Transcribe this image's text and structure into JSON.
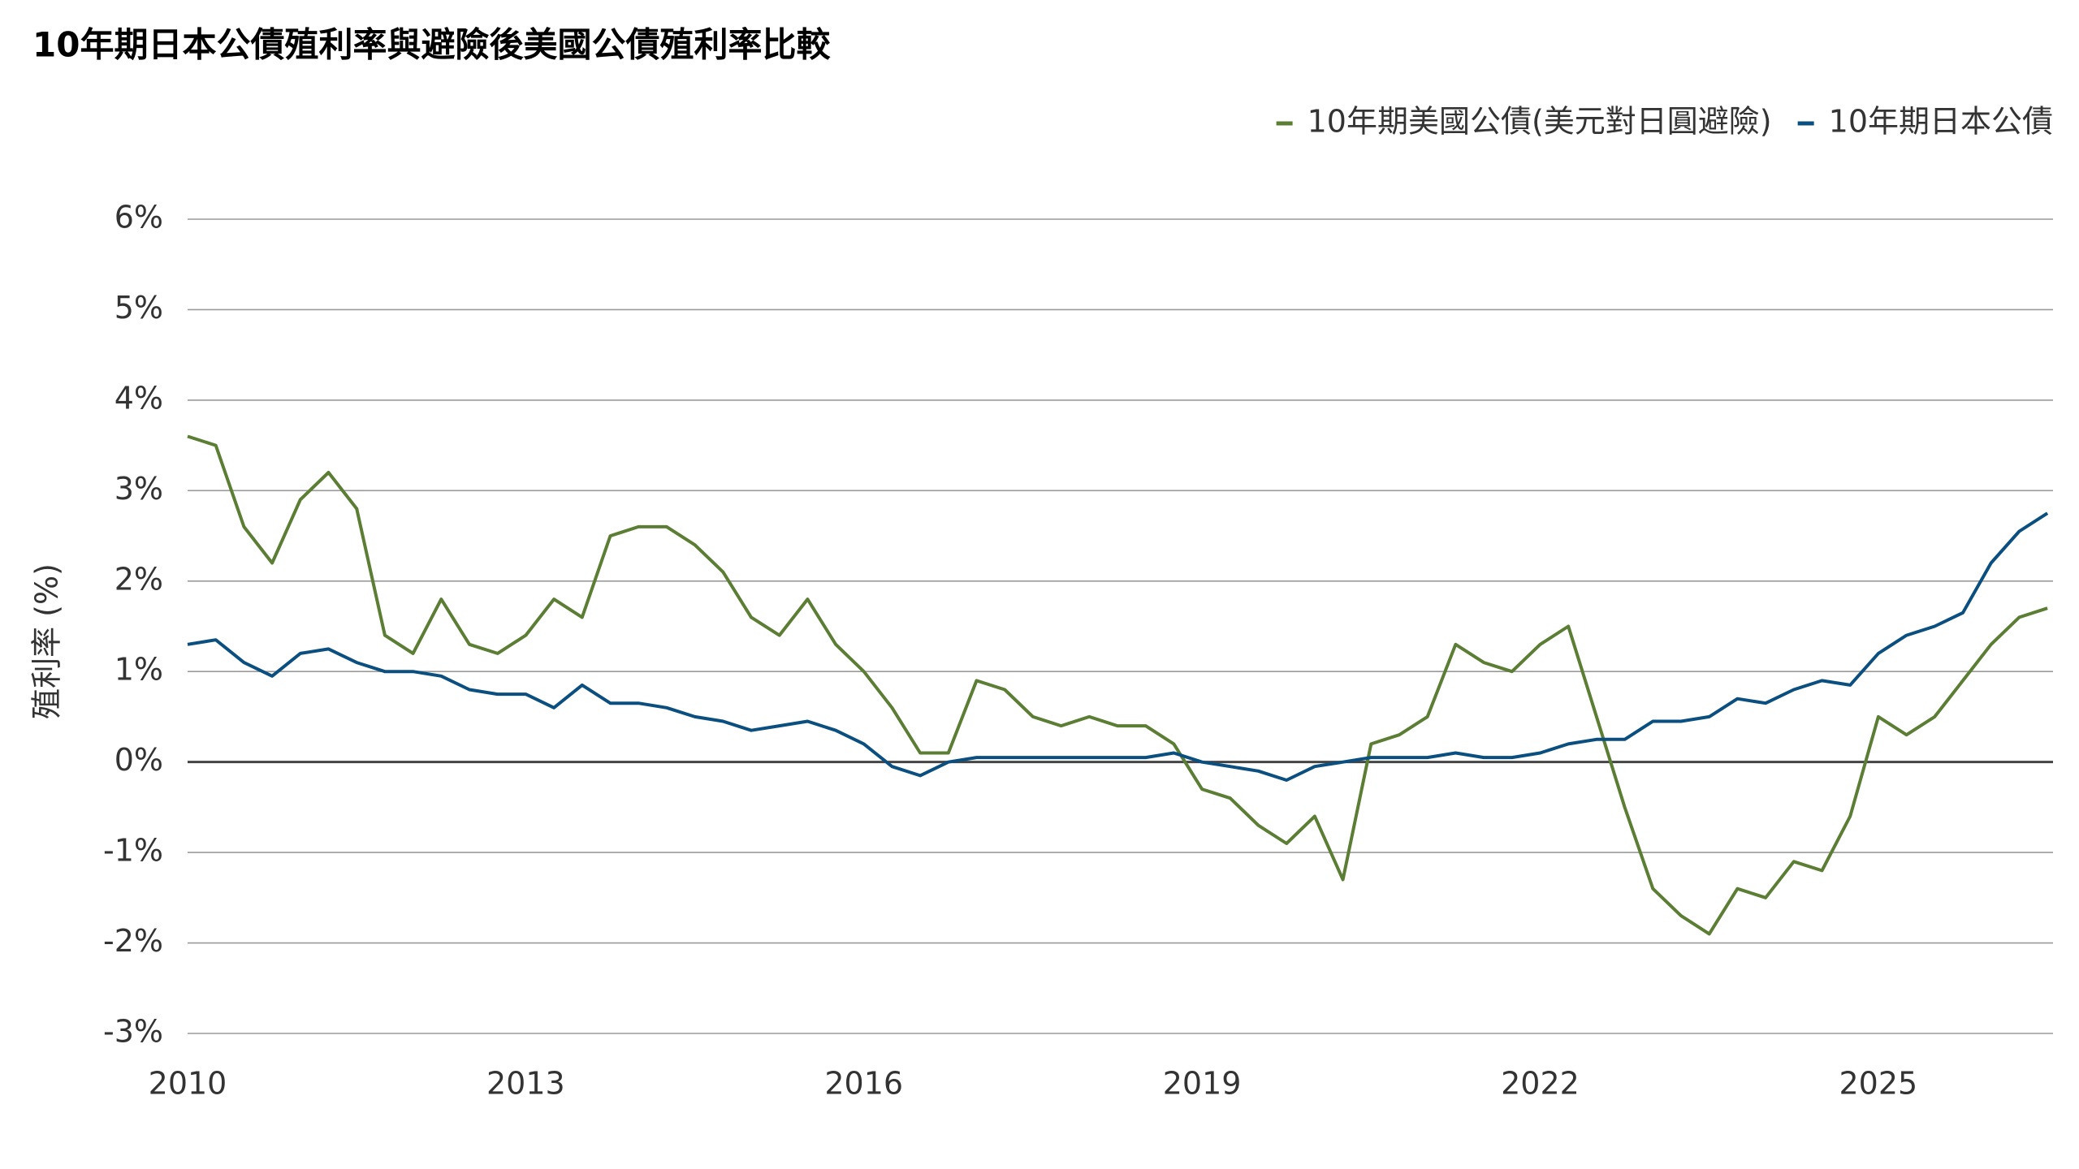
{
  "chart_data": {
    "type": "line",
    "title": "10年期日本公債殖利率與避險後美國公債殖利率比較",
    "y_label": "殖利率 (%)",
    "x": [
      2010,
      2010.25,
      2010.5,
      2010.75,
      2011,
      2011.25,
      2011.5,
      2011.75,
      2012,
      2012.25,
      2012.5,
      2012.75,
      2013,
      2013.25,
      2013.5,
      2013.75,
      2014,
      2014.25,
      2014.5,
      2014.75,
      2015,
      2015.25,
      2015.5,
      2015.75,
      2016,
      2016.25,
      2016.5,
      2016.75,
      2017,
      2017.25,
      2017.5,
      2017.75,
      2018,
      2018.25,
      2018.5,
      2018.75,
      2019,
      2019.25,
      2019.5,
      2019.75,
      2020,
      2020.25,
      2020.5,
      2020.75,
      2021,
      2021.25,
      2021.5,
      2021.75,
      2022,
      2022.25,
      2022.5,
      2022.75,
      2023,
      2023.25,
      2023.5,
      2023.75,
      2024,
      2024.25,
      2024.5,
      2024.75,
      2025,
      2025.25,
      2025.5,
      2025.75,
      2026,
      2026.25,
      2026.5
    ],
    "series": [
      {
        "name": "10年期美國公債(美元對日圓避險)",
        "color": "#5b7d34",
        "values": [
          3.6,
          3.5,
          2.6,
          2.2,
          2.9,
          3.2,
          2.8,
          1.4,
          1.2,
          1.8,
          1.3,
          1.2,
          1.4,
          1.8,
          1.6,
          2.5,
          2.6,
          2.6,
          2.4,
          2.1,
          1.6,
          1.4,
          1.8,
          1.3,
          1.0,
          0.6,
          0.1,
          0.1,
          0.9,
          0.8,
          0.5,
          0.4,
          0.5,
          0.4,
          0.4,
          0.2,
          -0.3,
          -0.4,
          -0.7,
          -0.9,
          -0.6,
          -1.3,
          0.2,
          0.3,
          0.5,
          1.3,
          1.1,
          1.0,
          1.3,
          1.5,
          0.5,
          -0.5,
          -1.4,
          -1.7,
          -1.9,
          -1.4,
          -1.5,
          -1.1,
          -1.2,
          -0.6,
          0.5,
          0.3,
          0.5,
          0.9,
          1.3,
          1.6,
          1.7
        ]
      },
      {
        "name": "10年期日本公債",
        "color": "#0b4f80",
        "values": [
          1.3,
          1.35,
          1.1,
          0.95,
          1.2,
          1.25,
          1.1,
          1.0,
          1.0,
          0.95,
          0.8,
          0.75,
          0.75,
          0.6,
          0.85,
          0.65,
          0.65,
          0.6,
          0.5,
          0.45,
          0.35,
          0.4,
          0.45,
          0.35,
          0.2,
          -0.05,
          -0.15,
          0.0,
          0.05,
          0.05,
          0.05,
          0.05,
          0.05,
          0.05,
          0.05,
          0.1,
          0.0,
          -0.05,
          -0.1,
          -0.2,
          -0.05,
          0.0,
          0.05,
          0.05,
          0.05,
          0.1,
          0.05,
          0.05,
          0.1,
          0.2,
          0.25,
          0.25,
          0.45,
          0.45,
          0.5,
          0.7,
          0.65,
          0.8,
          0.9,
          0.85,
          1.2,
          1.4,
          1.5,
          1.65,
          2.2,
          2.55,
          2.75
        ]
      }
    ],
    "xlim": [
      2010,
      2026.55
    ],
    "xticks": [
      2010,
      2013,
      2016,
      2019,
      2022,
      2025
    ],
    "ylim": [
      -3,
      6
    ],
    "yticks": [
      {
        "value": -3,
        "label": "-3%"
      },
      {
        "value": -2,
        "label": "-2%"
      },
      {
        "value": -1,
        "label": "-1%"
      },
      {
        "value": 0,
        "label": "0%"
      },
      {
        "value": 1,
        "label": "1%"
      },
      {
        "value": 2,
        "label": "2%"
      },
      {
        "value": 3,
        "label": "3%"
      },
      {
        "value": 4,
        "label": "4%"
      },
      {
        "value": 5,
        "label": "5%"
      },
      {
        "value": 6,
        "label": "6%"
      }
    ],
    "grid": true,
    "legend": "top-right"
  }
}
